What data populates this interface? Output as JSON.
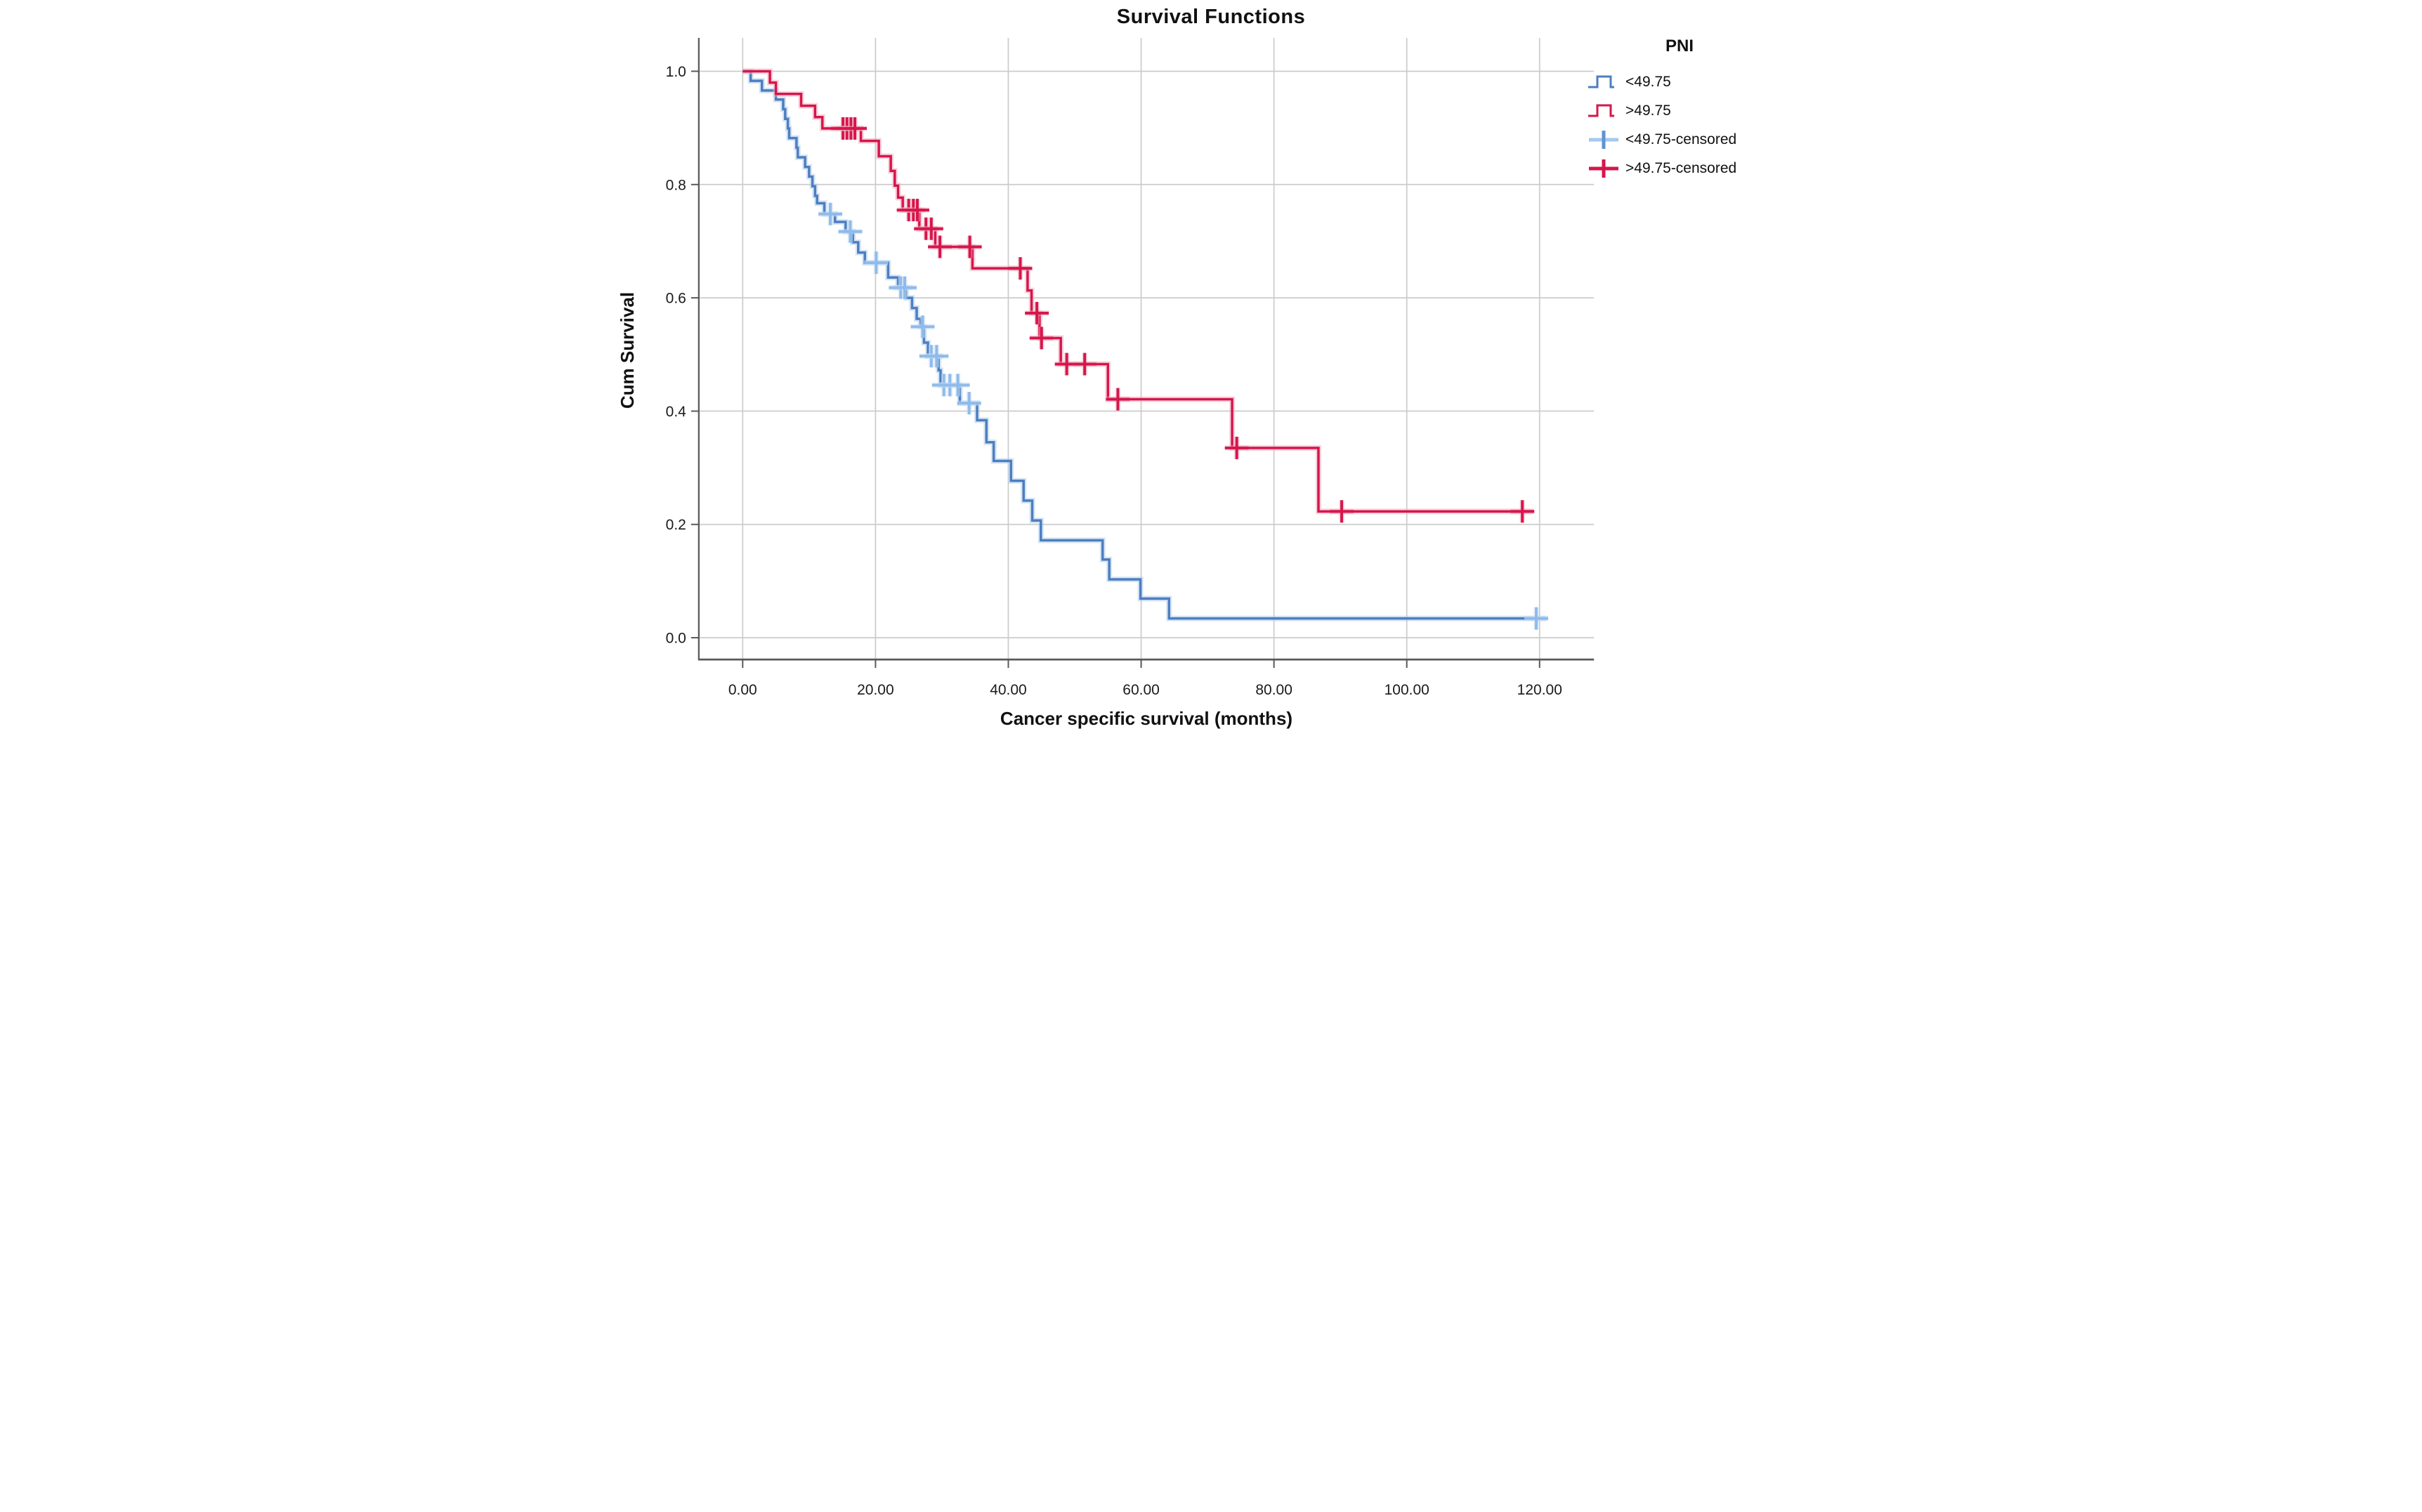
{
  "title": "Survival Functions",
  "chart_data": {
    "type": "line",
    "subtype": "kaplan-meier-step",
    "title": "Survival Functions",
    "xlabel": "Cancer specific survival (months)",
    "ylabel": "Cum Survival",
    "xticks": [
      "0.00",
      "20.00",
      "40.00",
      "60.00",
      "80.00",
      "100.00",
      "120.00"
    ],
    "xtick_values": [
      0,
      20,
      40,
      60,
      80,
      100,
      120
    ],
    "yticks": [
      "0.0",
      "0.2",
      "0.4",
      "0.6",
      "0.8",
      "1.0"
    ],
    "ytick_values": [
      0,
      0.2,
      0.4,
      0.6,
      0.8,
      1.0
    ],
    "xlim": [
      -8,
      129
    ],
    "ylim": [
      -0.04,
      1.06
    ],
    "grid": true,
    "colors": {
      "background": "#ffffff",
      "grid": "#cccccc",
      "axis": "#595959",
      "tick_text": "#1a1a1a",
      "blue_line": "#4d7ec0",
      "blue_halo": "#b3d0f0",
      "blue_censor": "#8fbbea",
      "blue_censor_halo": "#c9def6",
      "red_line": "#d6164b",
      "red_halo": "#f0b0c2",
      "red_censor": "#d6164b",
      "red_censor_halo": "#f0b0c2"
    },
    "legend": {
      "title": "PNI",
      "position": "right",
      "entries": [
        {
          "label": "<49.75",
          "type": "step-line",
          "color": "#4d7ec0"
        },
        {
          "label": ">49.75",
          "type": "step-line",
          "color": "#d6164b"
        },
        {
          "label": "<49.75-censored",
          "type": "plus",
          "color": "#a4c8f0",
          "accent": "#5f93d2"
        },
        {
          "label": ">49.75-censored",
          "type": "plus",
          "color": "#d6164b",
          "accent": "#d6164b"
        }
      ]
    },
    "series": [
      {
        "name": "<49.75",
        "color": "#4d7ec0",
        "halo": "#b3d0f0",
        "censor_color": "#8fbbea",
        "censor_halo": "#c9def6",
        "end_x": 121,
        "steps": [
          [
            0,
            1.0
          ],
          [
            1.2,
            0.983
          ],
          [
            2.9,
            0.966
          ],
          [
            5.0,
            0.95
          ],
          [
            6.1,
            0.933
          ],
          [
            6.4,
            0.916
          ],
          [
            6.8,
            0.899
          ],
          [
            7.0,
            0.882
          ],
          [
            8.1,
            0.865
          ],
          [
            8.3,
            0.848
          ],
          [
            9.4,
            0.831
          ],
          [
            10.0,
            0.814
          ],
          [
            10.5,
            0.797
          ],
          [
            10.9,
            0.78
          ],
          [
            11.2,
            0.767
          ],
          [
            12.3,
            0.748
          ],
          [
            13.9,
            0.734
          ],
          [
            15.5,
            0.717
          ],
          [
            16.6,
            0.698
          ],
          [
            17.4,
            0.68
          ],
          [
            18.4,
            0.662
          ],
          [
            21.9,
            0.636
          ],
          [
            23.4,
            0.618
          ],
          [
            24.6,
            0.6
          ],
          [
            25.5,
            0.582
          ],
          [
            26.2,
            0.563
          ],
          [
            26.8,
            0.549
          ],
          [
            27.3,
            0.521
          ],
          [
            27.9,
            0.497
          ],
          [
            29.5,
            0.472
          ],
          [
            29.8,
            0.446
          ],
          [
            32.7,
            0.414
          ],
          [
            35.3,
            0.384
          ],
          [
            36.7,
            0.345
          ],
          [
            37.8,
            0.312
          ],
          [
            40.4,
            0.277
          ],
          [
            42.3,
            0.242
          ],
          [
            43.6,
            0.207
          ],
          [
            44.9,
            0.172
          ],
          [
            54.2,
            0.138
          ],
          [
            55.2,
            0.103
          ],
          [
            59.9,
            0.069
          ],
          [
            64.2,
            0.034
          ]
        ],
        "censored": [
          [
            13.2,
            0.748
          ],
          [
            16.2,
            0.717
          ],
          [
            20.1,
            0.662
          ],
          [
            23.8,
            0.618
          ],
          [
            24.4,
            0.618
          ],
          [
            27.1,
            0.549
          ],
          [
            28.4,
            0.497
          ],
          [
            29.2,
            0.497
          ],
          [
            30.3,
            0.446
          ],
          [
            31.2,
            0.446
          ],
          [
            32.4,
            0.446
          ],
          [
            34.1,
            0.414
          ],
          [
            119.5,
            0.034
          ]
        ]
      },
      {
        "name": ">49.75",
        "color": "#d6164b",
        "halo": "#f0b0c2",
        "censor_color": "#d6164b",
        "censor_halo": "#f0b0c2",
        "end_x": 119,
        "steps": [
          [
            0,
            1.0
          ],
          [
            4.1,
            0.98
          ],
          [
            5.0,
            0.96
          ],
          [
            8.8,
            0.939
          ],
          [
            10.9,
            0.919
          ],
          [
            12.0,
            0.899
          ],
          [
            17.8,
            0.877
          ],
          [
            20.5,
            0.85
          ],
          [
            22.3,
            0.824
          ],
          [
            22.9,
            0.798
          ],
          [
            23.4,
            0.777
          ],
          [
            24.1,
            0.755
          ],
          [
            26.6,
            0.722
          ],
          [
            29.0,
            0.69
          ],
          [
            34.6,
            0.652
          ],
          [
            42.9,
            0.613
          ],
          [
            43.5,
            0.573
          ],
          [
            44.7,
            0.529
          ],
          [
            47.9,
            0.483
          ],
          [
            55.0,
            0.421
          ],
          [
            73.7,
            0.335
          ],
          [
            86.7,
            0.223
          ]
        ],
        "censored": [
          [
            15.1,
            0.899
          ],
          [
            15.7,
            0.899
          ],
          [
            16.3,
            0.899
          ],
          [
            16.9,
            0.899
          ],
          [
            25.0,
            0.755
          ],
          [
            25.7,
            0.755
          ],
          [
            26.3,
            0.755
          ],
          [
            27.6,
            0.722
          ],
          [
            28.4,
            0.722
          ],
          [
            29.7,
            0.69
          ],
          [
            34.2,
            0.69
          ],
          [
            41.8,
            0.652
          ],
          [
            44.3,
            0.573
          ],
          [
            45.0,
            0.529
          ],
          [
            48.8,
            0.483
          ],
          [
            51.5,
            0.483
          ],
          [
            56.5,
            0.421
          ],
          [
            74.4,
            0.335
          ],
          [
            90.2,
            0.223
          ],
          [
            117.4,
            0.223
          ]
        ]
      }
    ]
  }
}
